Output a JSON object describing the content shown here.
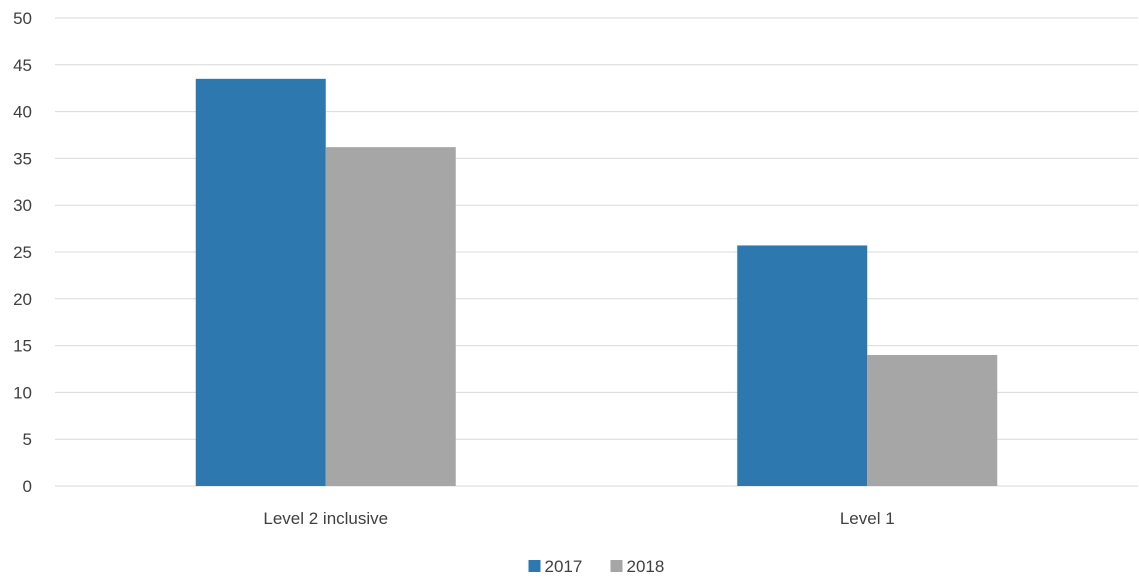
{
  "chart_data": {
    "type": "bar",
    "title": "",
    "xlabel": "",
    "ylabel": "",
    "categories": [
      "Level 2 inclusive",
      "Level 1"
    ],
    "series": [
      {
        "name": "2017",
        "values": [
          43.5,
          25.7
        ]
      },
      {
        "name": "2018",
        "values": [
          36.2,
          14.0
        ]
      }
    ],
    "ylim": [
      0,
      50
    ],
    "yticks": [
      "0",
      "5",
      "10",
      "15",
      "20",
      "25",
      "30",
      "35",
      "40",
      "45",
      "50"
    ],
    "grid": true,
    "legend_position": "bottom",
    "colors": {
      "series": [
        "#2e78b0",
        "#a6a6a6"
      ],
      "grid": "#d9d9d9",
      "axis_text": "#404040"
    }
  }
}
